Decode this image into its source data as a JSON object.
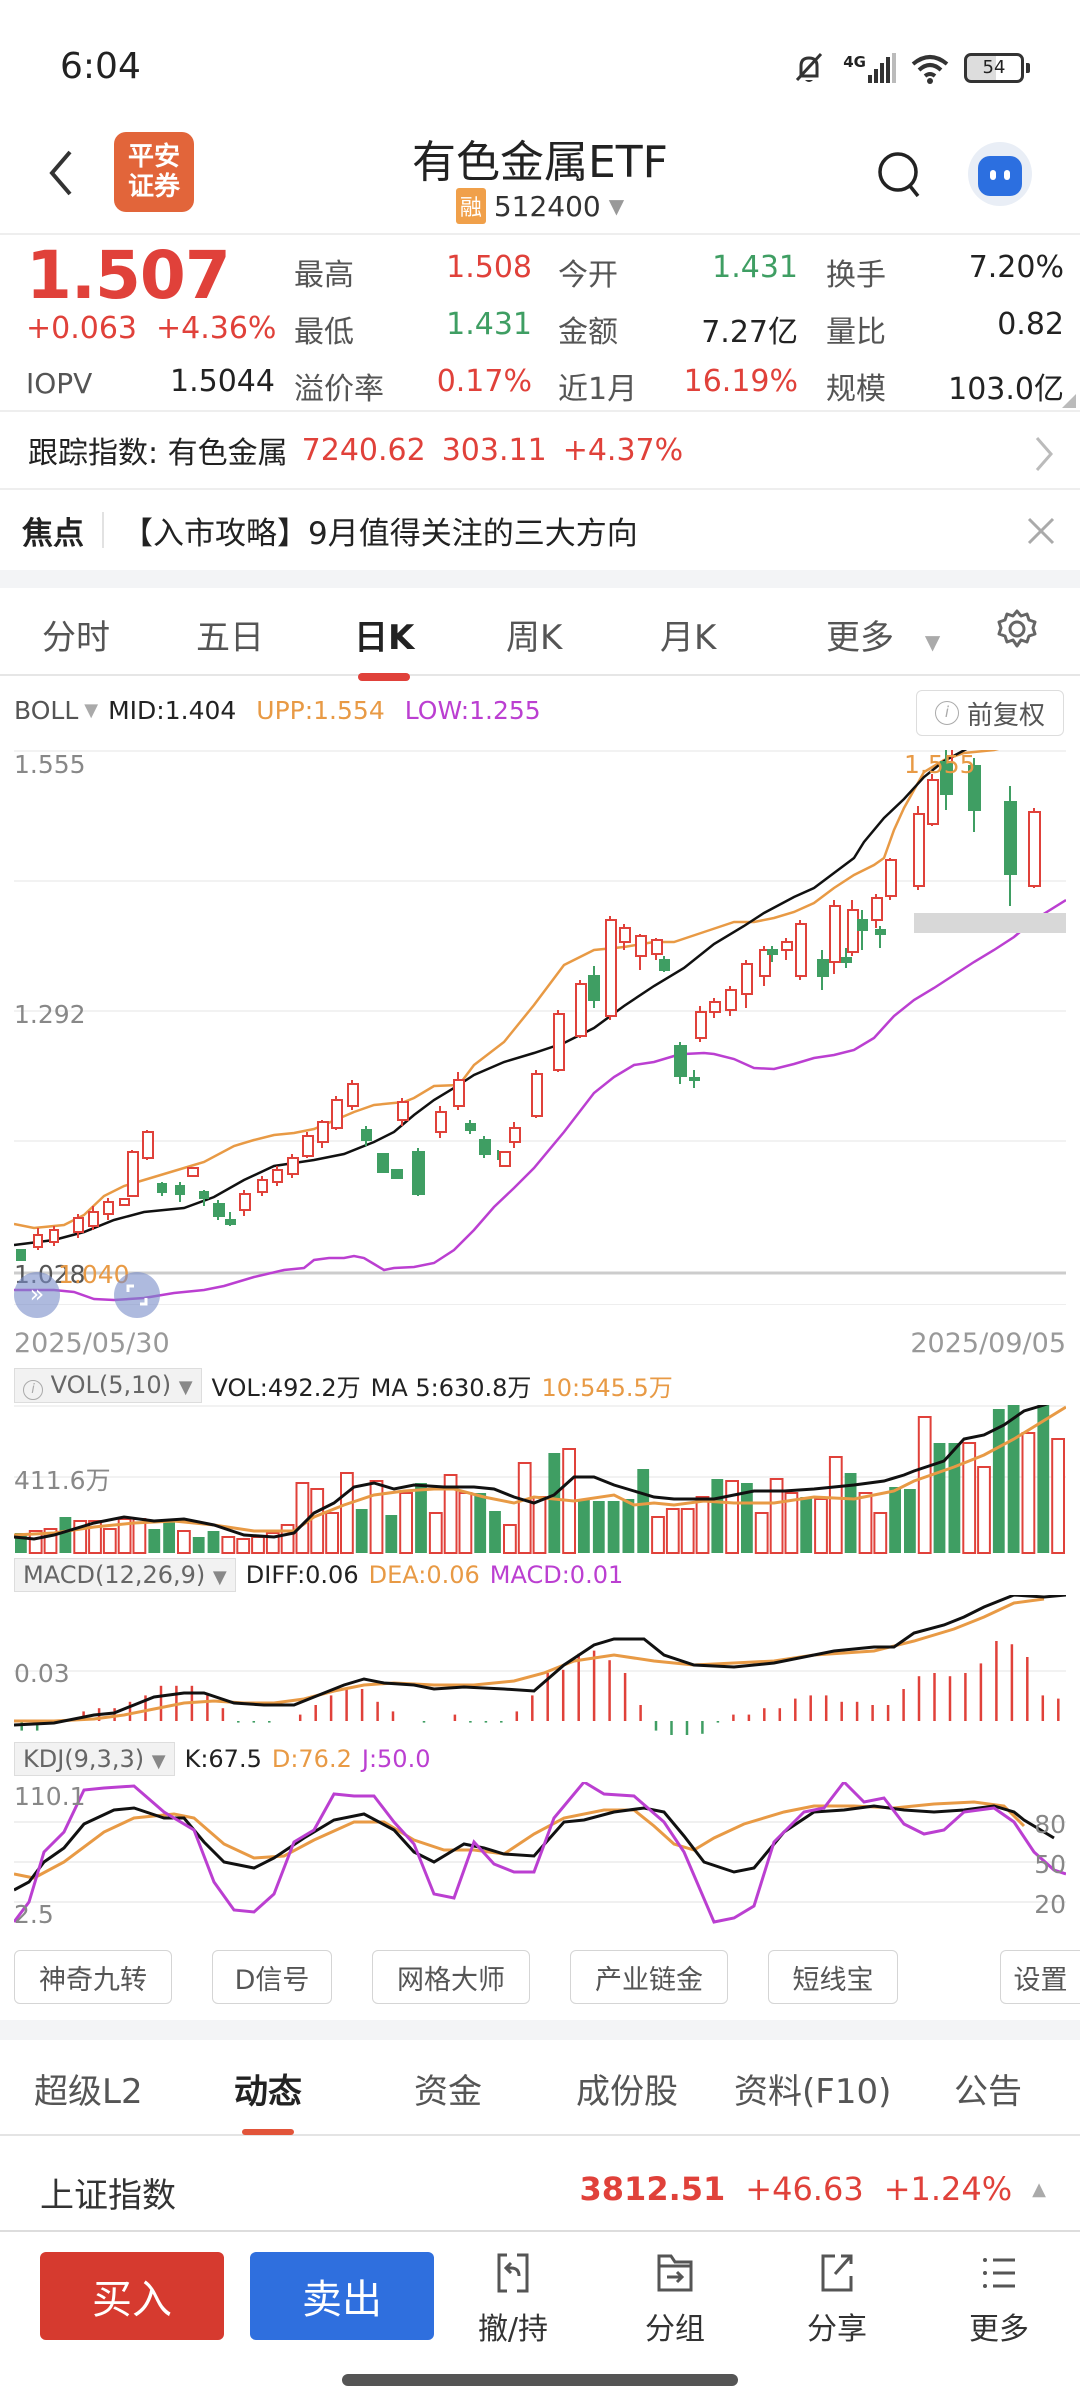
{
  "status_bar": {
    "time": "6:04",
    "network": "4G",
    "battery": "54",
    "icons": [
      "mute-bell-icon",
      "signal-icon",
      "wifi-icon",
      "battery-icon"
    ]
  },
  "header": {
    "logo_line1": "平安",
    "logo_line2": "证券",
    "title": "有色金属ETF",
    "margin_badge": "融",
    "code": "512400"
  },
  "quote": {
    "price": "1.507",
    "change": "+0.063",
    "change_pct": "+4.36%",
    "iopv_label": "IOPV",
    "iopv": "1.5044",
    "stats": [
      {
        "label": "最高",
        "value": "1.508",
        "color": "red"
      },
      {
        "label": "今开",
        "value": "1.431",
        "color": "green"
      },
      {
        "label": "换手",
        "value": "7.20%",
        "color": "dark"
      },
      {
        "label": "最低",
        "value": "1.431",
        "color": "green"
      },
      {
        "label": "金额",
        "value": "7.27亿",
        "color": "dark"
      },
      {
        "label": "量比",
        "value": "0.82",
        "color": "dark"
      },
      {
        "label": "溢价率",
        "value": "0.17%",
        "color": "red"
      },
      {
        "label": "近1月",
        "value": "16.19%",
        "color": "red"
      },
      {
        "label": "规模",
        "value": "103.0亿",
        "color": "dark"
      }
    ]
  },
  "tracking": {
    "label": "跟踪指数: 有色金属",
    "value": "7240.62",
    "change": "303.11",
    "pct": "+4.37%"
  },
  "focus": {
    "label": "焦点",
    "text": "【入市攻略】9月值得关注的三大方向"
  },
  "period_tabs": [
    {
      "label": "分时",
      "active": false
    },
    {
      "label": "五日",
      "active": false
    },
    {
      "label": "日K",
      "active": true
    },
    {
      "label": "周K",
      "active": false
    },
    {
      "label": "月K",
      "active": false
    },
    {
      "label": "更多",
      "active": false
    }
  ],
  "boll": {
    "name": "BOLL",
    "mid": "MID:1.404",
    "upp": "UPP:1.554",
    "low": "LOW:1.255",
    "adjust_label": "前复权",
    "y_top": "1.555",
    "y_mid": "1.292",
    "y_bottom": "1.028",
    "max_marker": "1.555",
    "min_marker": "1.040",
    "date_start": "2025/05/30",
    "date_end": "2025/09/05"
  },
  "vol": {
    "name": "VOL(5,10)",
    "vol": "VOL:492.2万",
    "ma5": "MA 5:630.8万",
    "ma10": "10:545.5万",
    "y_label": "411.6万"
  },
  "macd": {
    "name": "MACD(12,26,9)",
    "diff": "DIFF:0.06",
    "dea": "DEA:0.06",
    "macd": "MACD:0.01",
    "y_label": "0.03"
  },
  "kdj": {
    "name": "KDJ(9,3,3)",
    "k": "K:67.5",
    "d": "D:76.2",
    "j": "J:50.0",
    "y_top": "110.1",
    "y_bottom": "2.5",
    "levels": [
      "80",
      "50",
      "20"
    ]
  },
  "tools": [
    "神奇九转",
    "D信号",
    "网格大师",
    "产业链金",
    "短线宝",
    "设置"
  ],
  "bottom_tabs": [
    {
      "label": "超级L2",
      "active": false
    },
    {
      "label": "动态",
      "active": true
    },
    {
      "label": "资金",
      "active": false
    },
    {
      "label": "成份股",
      "active": false
    },
    {
      "label": "资料(F10)",
      "active": false
    },
    {
      "label": "公告",
      "active": false
    }
  ],
  "market_index": {
    "name": "上证指数",
    "value": "3812.51",
    "change": "+46.63",
    "pct": "+1.24%"
  },
  "actions": {
    "buy": "买入",
    "sell": "卖出",
    "items": [
      "撤/持",
      "分组",
      "分享",
      "更多"
    ]
  },
  "colors": {
    "up": "#e0413a",
    "down": "#3f9e63",
    "upp_line": "#e89a45",
    "low_line": "#bb3fd1",
    "buy": "#d63a2f",
    "sell": "#2f6fde",
    "brand": "#e2653a"
  },
  "chart_data": [
    {
      "type": "candlestick",
      "title": "日K BOLL",
      "x_range": [
        "2025/05/30",
        "2025/09/05"
      ],
      "ylim": [
        1.028,
        1.555
      ],
      "y_ticks": [
        1.555,
        1.292,
        1.028
      ],
      "indicators": {
        "MID": 1.404,
        "UPP": 1.554,
        "LOW": 1.255
      },
      "approx_close_trend": [
        1.04,
        1.05,
        1.07,
        1.1,
        1.12,
        1.11,
        1.09,
        1.1,
        1.13,
        1.16,
        1.18,
        1.15,
        1.17,
        1.14,
        1.17,
        1.2,
        1.31,
        1.3,
        1.29,
        1.24,
        1.26,
        1.28,
        1.31,
        1.35,
        1.38,
        1.41,
        1.45,
        1.48,
        1.55,
        1.52,
        1.48,
        1.507
      ]
    },
    {
      "type": "bar",
      "title": "VOL(5,10)",
      "y_label": "411.6万",
      "last": {
        "VOL": "492.2万",
        "MA5": "630.8万",
        "MA10": "545.5万"
      }
    },
    {
      "type": "line",
      "title": "MACD(12,26,9)",
      "y_label": "0.03",
      "last": {
        "DIFF": 0.06,
        "DEA": 0.06,
        "MACD": 0.01
      }
    },
    {
      "type": "line",
      "title": "KDJ(9,3,3)",
      "ylim": [
        2.5,
        110.1
      ],
      "levels": [
        80,
        50,
        20
      ],
      "last": {
        "K": 67.5,
        "D": 76.2,
        "J": 50.0
      }
    }
  ]
}
